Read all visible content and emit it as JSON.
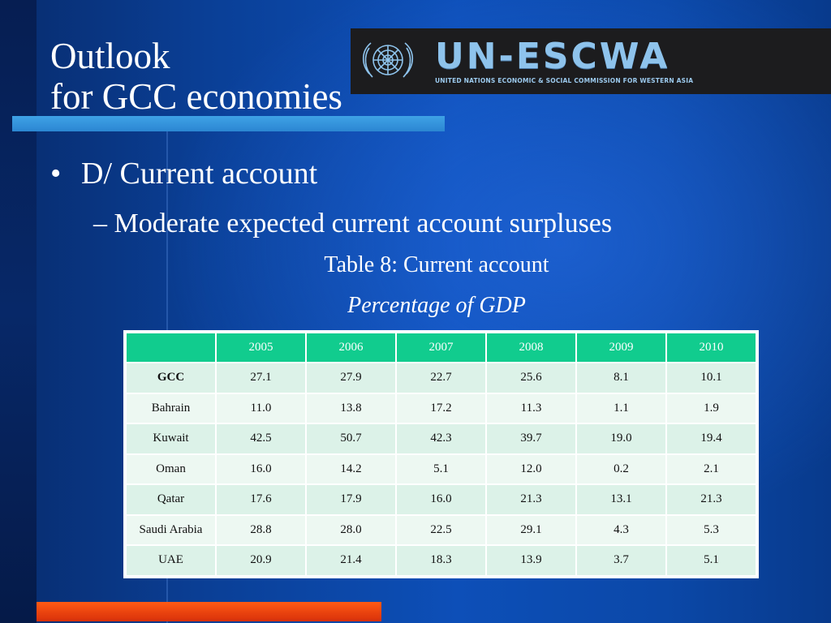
{
  "slide": {
    "title_line1": "Outlook",
    "title_line2": "for GCC economies",
    "bullet_marker": "•",
    "bullet": "D/ Current account",
    "sub_bullet": "– Moderate expected current account surpluses",
    "caption": "Table 8: Current account",
    "subcaption": "Percentage of GDP"
  },
  "logo": {
    "name": "UN-ESCWA",
    "subtitle": "UNITED NATIONS ECONOMIC & SOCIAL COMMISSION FOR WESTERN ASIA",
    "emblem_icon": "un-emblem-icon"
  },
  "colors": {
    "header_green": "#11cc8e",
    "accent_red": "#e8380e",
    "accent_light_blue": "#3fa2e6",
    "background_blue": "#0d4fb8"
  },
  "table": {
    "columns": [
      "",
      "2005",
      "2006",
      "2007",
      "2008",
      "2009",
      "2010"
    ],
    "rows": [
      {
        "label": "GCC",
        "values": [
          "27.1",
          "27.9",
          "22.7",
          "25.6",
          "8.1",
          "10.1"
        ]
      },
      {
        "label": "Bahrain",
        "values": [
          "11.0",
          "13.8",
          "17.2",
          "11.3",
          "1.1",
          "1.9"
        ]
      },
      {
        "label": "Kuwait",
        "values": [
          "42.5",
          "50.7",
          "42.3",
          "39.7",
          "19.0",
          "19.4"
        ]
      },
      {
        "label": "Oman",
        "values": [
          "16.0",
          "14.2",
          "5.1",
          "12.0",
          "0.2",
          "2.1"
        ]
      },
      {
        "label": "Qatar",
        "values": [
          "17.6",
          "17.9",
          "16.0",
          "21.3",
          "13.1",
          "21.3"
        ]
      },
      {
        "label": "Saudi Arabia",
        "values": [
          "28.8",
          "28.0",
          "22.5",
          "29.1",
          "4.3",
          "5.3"
        ]
      },
      {
        "label": "UAE",
        "values": [
          "20.9",
          "21.4",
          "18.3",
          "13.9",
          "3.7",
          "5.1"
        ]
      }
    ]
  }
}
